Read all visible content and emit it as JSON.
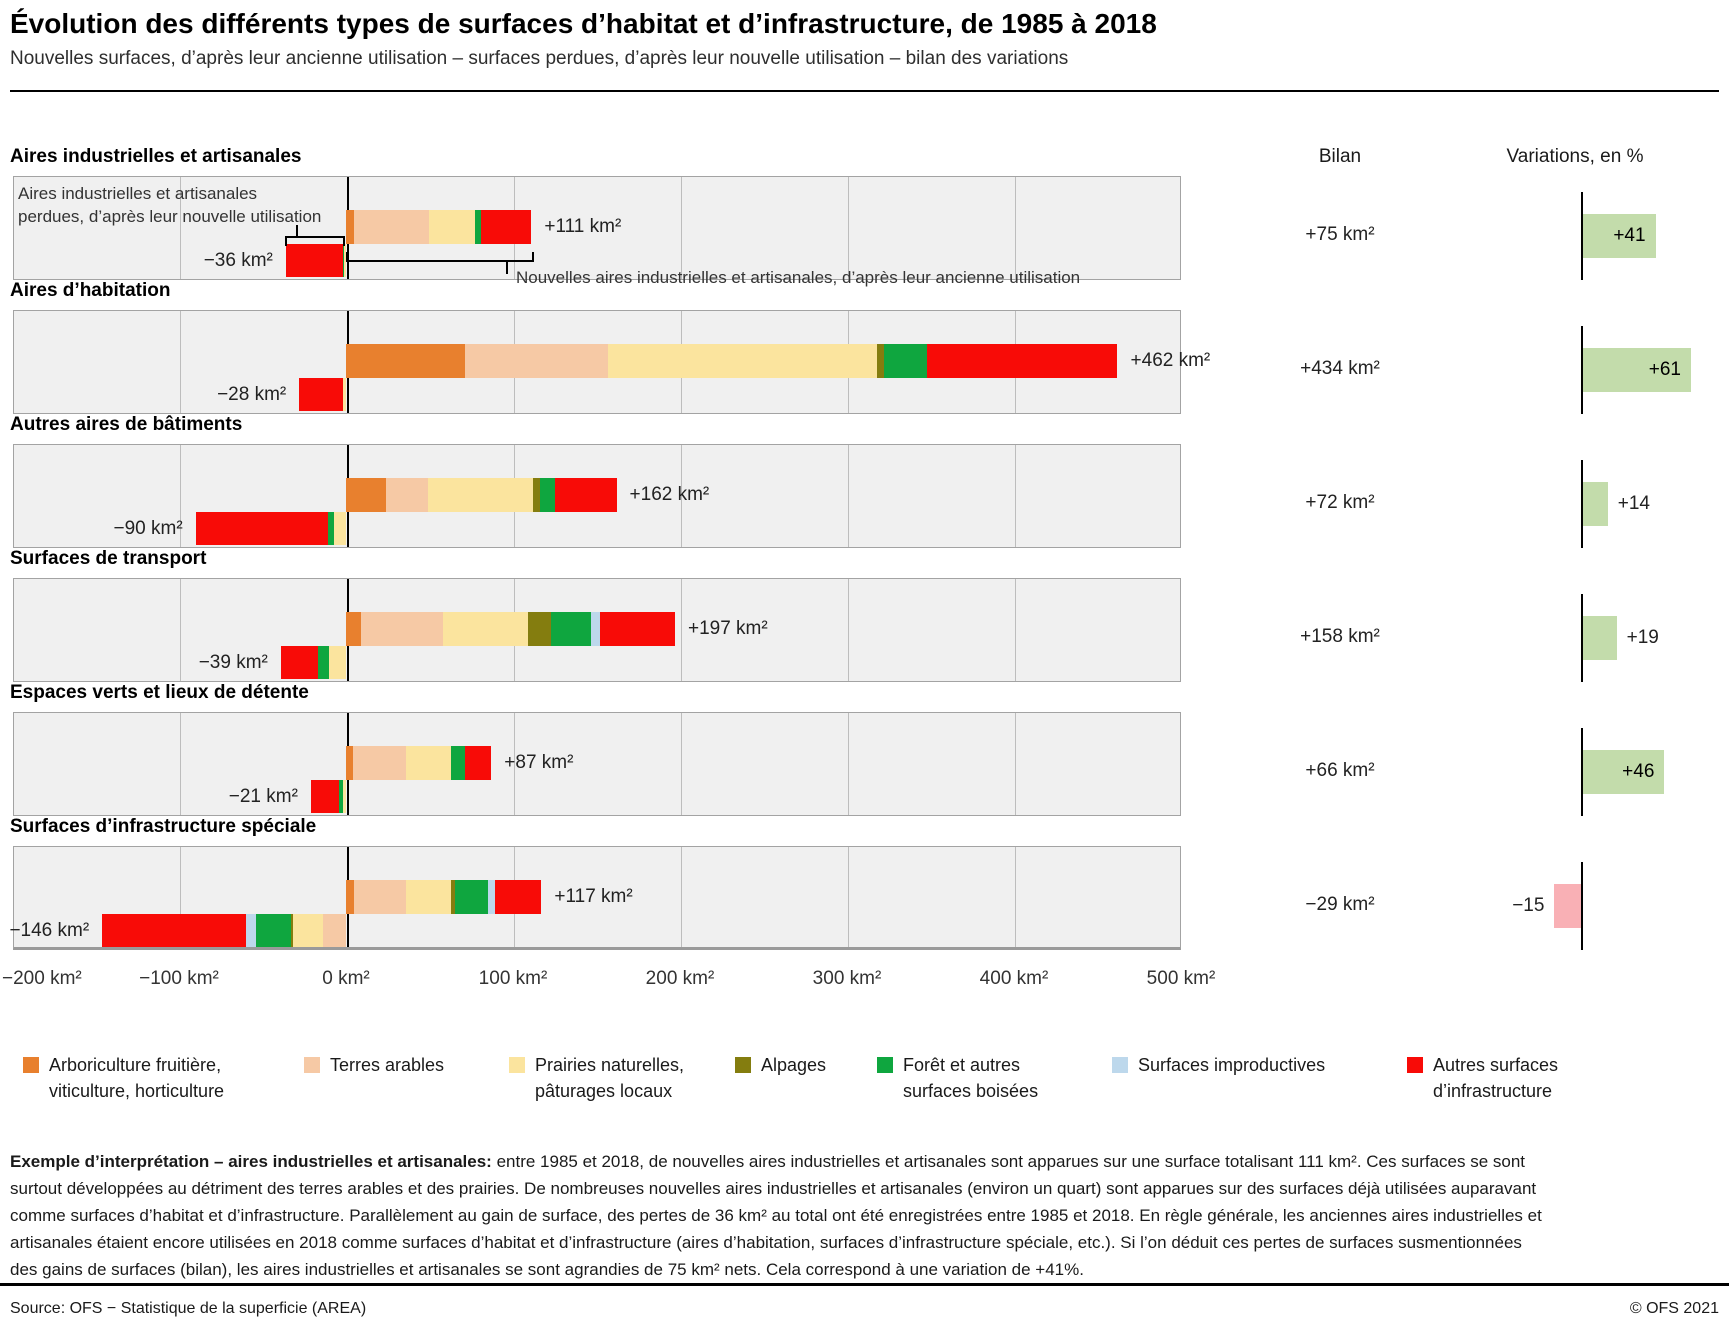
{
  "header": {
    "title": "Évolution des différents types de surfaces d’habitat et d’infrastructure, de 1985 à 2018",
    "subtitle": "Nouvelles surfaces, d’après leur ancienne utilisation – surfaces perdues, d’après leur nouvelle utilisation – bilan des variations"
  },
  "columns": {
    "bilan": "Bilan",
    "variations": "Variations, en %"
  },
  "annotations": {
    "loss_note": "Aires industrielles et artisanales\nperdues, d’après leur nouvelle utilisation",
    "gain_note": "Nouvelles aires industrielles et artisanales, d’après leur ancienne utilisation"
  },
  "chart_data": {
    "type": "bar",
    "subtype": "diverging-stacked-horizontal",
    "unit": "km²",
    "axis": {
      "ticks": [
        -200,
        -100,
        0,
        100,
        200,
        300,
        400,
        500
      ],
      "tick_labels": [
        "−200 km²",
        "−100 km²",
        "0 km²",
        "100 km²",
        "200 km²",
        "300 km²",
        "400 km²",
        "500 km²"
      ],
      "xlim": [
        -200,
        500
      ],
      "grid": true
    },
    "colors": {
      "arboriculture": "#e8802e",
      "terres_arables": "#f6c9a5",
      "prairies": "#fbe49e",
      "alpages": "#847d0f",
      "foret": "#0fa63f",
      "improductives": "#bdd8ec",
      "autres_infra": "#f80b07",
      "variation_positive": "#c3dcab",
      "variation_negative": "#f9b0b5"
    },
    "legend": [
      {
        "id": "arboriculture",
        "label": "Arboriculture fruitière,\nviticulture, horticulture"
      },
      {
        "id": "terres_arables",
        "label": "Terres arables"
      },
      {
        "id": "prairies",
        "label": "Prairies naturelles,\npâturages locaux"
      },
      {
        "id": "alpages",
        "label": "Alpages"
      },
      {
        "id": "foret",
        "label": "Forêt et autres\nsurfaces boisées"
      },
      {
        "id": "improductives",
        "label": "Surfaces improductives"
      },
      {
        "id": "autres_infra",
        "label": "Autres surfaces\nd’infrastructure"
      }
    ],
    "rows": [
      {
        "label": "Aires industrielles et artisanales",
        "gain_total": 111,
        "gain_label": "+111 km²",
        "loss_total": -36,
        "loss_label": "−36 km²",
        "gain_segments": [
          [
            "arboriculture",
            5
          ],
          [
            "terres_arables",
            45
          ],
          [
            "prairies",
            27
          ],
          [
            "foret",
            4
          ],
          [
            "autres_infra",
            30
          ]
        ],
        "loss_segments": [
          [
            "autres_infra",
            34
          ],
          [
            "foret",
            1
          ],
          [
            "prairies",
            1
          ]
        ],
        "bilan": 75,
        "bilan_label": "+75 km²",
        "variation_pct": 41,
        "variation_label": "+41"
      },
      {
        "label": "Aires d’habitation",
        "gain_total": 462,
        "gain_label": "+462 km²",
        "loss_total": -28,
        "loss_label": "−28 km²",
        "gain_segments": [
          [
            "arboriculture",
            71
          ],
          [
            "terres_arables",
            86
          ],
          [
            "prairies",
            161
          ],
          [
            "alpages",
            4
          ],
          [
            "foret",
            26
          ],
          [
            "autres_infra",
            114
          ]
        ],
        "loss_segments": [
          [
            "autres_infra",
            26
          ],
          [
            "prairies",
            2
          ]
        ],
        "bilan": 434,
        "bilan_label": "+434 km²",
        "variation_pct": 61,
        "variation_label": "+61"
      },
      {
        "label": "Autres aires de bâtiments",
        "gain_total": 162,
        "gain_label": "+162 km²",
        "loss_total": -90,
        "loss_label": "−90 km²",
        "gain_segments": [
          [
            "arboriculture",
            24
          ],
          [
            "terres_arables",
            25
          ],
          [
            "prairies",
            63
          ],
          [
            "alpages",
            4
          ],
          [
            "foret",
            9
          ],
          [
            "autres_infra",
            37
          ]
        ],
        "loss_segments": [
          [
            "autres_infra",
            79
          ],
          [
            "foret",
            4
          ],
          [
            "prairies",
            7
          ]
        ],
        "bilan": 72,
        "bilan_label": "+72 km²",
        "variation_pct": 14,
        "variation_label": "+14"
      },
      {
        "label": "Surfaces de transport",
        "gain_total": 197,
        "gain_label": "+197 km²",
        "loss_total": -39,
        "loss_label": "−39 km²",
        "gain_segments": [
          [
            "arboriculture",
            9
          ],
          [
            "terres_arables",
            49
          ],
          [
            "prairies",
            51
          ],
          [
            "alpages",
            14
          ],
          [
            "foret",
            24
          ],
          [
            "improductives",
            5
          ],
          [
            "autres_infra",
            45
          ]
        ],
        "loss_segments": [
          [
            "autres_infra",
            22
          ],
          [
            "foret",
            7
          ],
          [
            "prairies",
            10
          ]
        ],
        "bilan": 158,
        "bilan_label": "+158 km²",
        "variation_pct": 19,
        "variation_label": "+19"
      },
      {
        "label": "Espaces verts et lieux de détente",
        "gain_total": 87,
        "gain_label": "+87 km²",
        "loss_total": -21,
        "loss_label": "−21 km²",
        "gain_segments": [
          [
            "arboriculture",
            4
          ],
          [
            "terres_arables",
            32
          ],
          [
            "prairies",
            27
          ],
          [
            "foret",
            8
          ],
          [
            "autres_infra",
            16
          ]
        ],
        "loss_segments": [
          [
            "autres_infra",
            17
          ],
          [
            "foret",
            2
          ],
          [
            "prairies",
            2
          ]
        ],
        "bilan": 66,
        "bilan_label": "+66 km²",
        "variation_pct": 46,
        "variation_label": "+46"
      },
      {
        "label": "Surfaces d’infrastructure spéciale",
        "gain_total": 117,
        "gain_label": "+117 km²",
        "loss_total": -146,
        "loss_label": "−146 km²",
        "gain_segments": [
          [
            "arboriculture",
            5
          ],
          [
            "terres_arables",
            31
          ],
          [
            "prairies",
            27
          ],
          [
            "alpages",
            2
          ],
          [
            "foret",
            20
          ],
          [
            "improductives",
            4
          ],
          [
            "autres_infra",
            28
          ]
        ],
        "loss_segments": [
          [
            "autres_infra",
            86
          ],
          [
            "improductives",
            6
          ],
          [
            "foret",
            21
          ],
          [
            "alpages",
            1
          ],
          [
            "prairies",
            18
          ],
          [
            "terres_arables",
            14
          ]
        ],
        "bilan": -29,
        "bilan_label": "−29 km²",
        "variation_pct": -15,
        "variation_label": "−15"
      }
    ]
  },
  "footnote": {
    "lead": "Exemple d’interprétation – aires industrielles et artisanales:",
    "body": " entre 1985 et 2018, de nouvelles aires industrielles et artisanales sont apparues sur une surface totalisant 111 km². Ces surfaces se sont surtout développées au détriment des terres arables et des prairies. De nombreuses nouvelles aires industrielles et artisanales (environ un quart) sont apparues sur des surfaces déjà utilisées auparavant comme surfaces d’habitat et d’infrastructure. Parallèlement au gain de surface, des pertes de 36 km² au total ont été enregistrées entre 1985 et 2018. En règle générale, les anciennes aires industrielles et artisanales étaient encore utilisées en 2018 comme surfaces d’habitat et d’infrastructure (aires d’habitation, surfaces d’infrastructure spéciale, etc.). Si l’on déduit ces pertes de surfaces susmentionnées des gains de surfaces (bilan), les aires industrielles et artisanales se sont agrandies de 75 km² nets. Cela correspond à une variation de +41%."
  },
  "footer": {
    "source": "Source: OFS − Statistique de la superficie (AREA)",
    "copyright": "© OFS 2021"
  }
}
